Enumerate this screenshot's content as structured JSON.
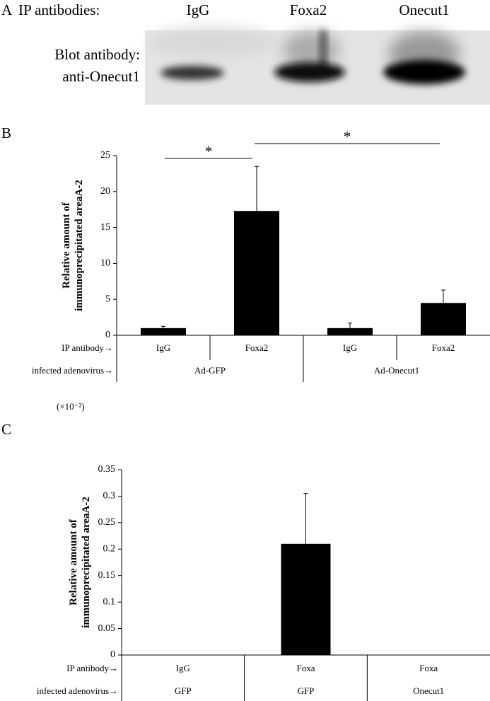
{
  "panel_labels": [
    "A",
    "B",
    "C"
  ],
  "blot": {
    "ip_label": "IP  antibodies:",
    "lanes": [
      "IgG",
      "Foxa2",
      "Onecut1"
    ],
    "blot_label": [
      "Blot antibody:",
      "anti-Onecut1"
    ]
  },
  "chart_data": [
    {
      "type": "bar",
      "ylabel": [
        "Relative amount of",
        "immunoprecipitated areaA-2"
      ],
      "categories": [
        "IgG",
        "Foxa2",
        "IgG",
        "Foxa2"
      ],
      "values": [
        1.0,
        17.3,
        1.0,
        4.5
      ],
      "errors": [
        0.25,
        6.2,
        0.7,
        1.8
      ],
      "color": "#000000",
      "ylim": [
        0,
        25
      ],
      "yticks": [
        0,
        5,
        10,
        15,
        20,
        25
      ],
      "row_labels": [
        "IP antibody→",
        "infected adenovirus→"
      ],
      "groups": [
        "Ad-GFP",
        "Ad-Onecut1"
      ],
      "annotations": [
        "*",
        "*"
      ]
    },
    {
      "type": "bar",
      "unit_label": "(×10⁻²)",
      "ylabel": [
        "Relative amount of",
        "immunoprecipitated areaA-2"
      ],
      "categories": [
        "IgG",
        "Foxa",
        "Foxa"
      ],
      "values": [
        0,
        0.21,
        0
      ],
      "errors": [
        0,
        0.095,
        0
      ],
      "color": "#000000",
      "ylim": [
        0,
        0.35
      ],
      "yticks": [
        0,
        0.05,
        0.1,
        0.15,
        0.2,
        0.25,
        0.3,
        0.35
      ],
      "row_labels": [
        "IP antibody→",
        "infected adenovirus→"
      ],
      "groups": [
        "GFP",
        "GFP",
        "Onecut1"
      ]
    }
  ]
}
